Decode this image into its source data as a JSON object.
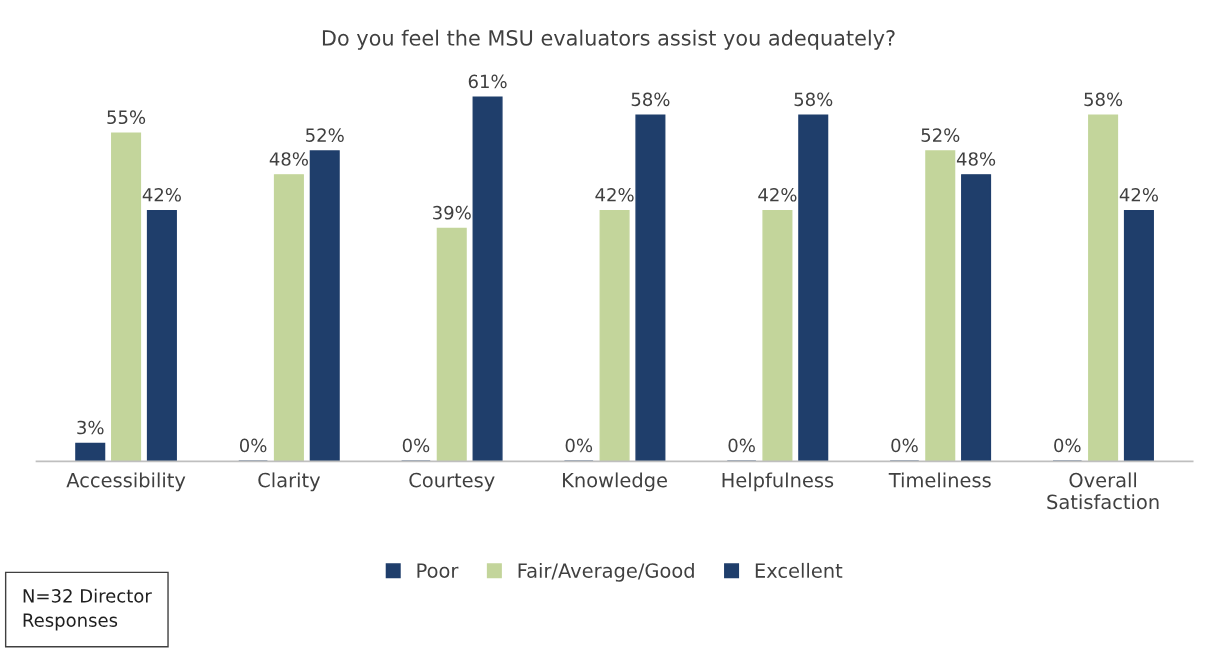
{
  "chart_data": {
    "type": "bar",
    "title": "Do you feel the MSU evaluators assist you adequately?",
    "categories": [
      "Accessibility",
      "Clarity",
      "Courtesy",
      "Knowledge",
      "Helpfulness",
      "Timeliness",
      "Overall\nSatisfaction"
    ],
    "series": [
      {
        "name": "Poor",
        "color": "#1f3e6b",
        "values": [
          3,
          0,
          0,
          0,
          0,
          0,
          0
        ],
        "value_labels": [
          "3%",
          "0%",
          "0%",
          "0%",
          "0%",
          "0%",
          "0%"
        ]
      },
      {
        "name": "Fair/Average/Good",
        "color": "#c3d59b",
        "values": [
          55,
          48,
          39,
          42,
          42,
          52,
          58
        ],
        "value_labels": [
          "55%",
          "48%",
          "39%",
          "42%",
          "42%",
          "52%",
          "58%"
        ]
      },
      {
        "name": "Excellent",
        "color": "#1f3e6b",
        "values": [
          42,
          52,
          61,
          58,
          58,
          48,
          42
        ],
        "value_labels": [
          "42%",
          "52%",
          "61%",
          "58%",
          "58%",
          "48%",
          "42%"
        ]
      }
    ],
    "tick_labels": "x",
    "legend": "bottom",
    "grid": false,
    "annotations": [
      "N=32 Director\nResponses"
    ]
  }
}
